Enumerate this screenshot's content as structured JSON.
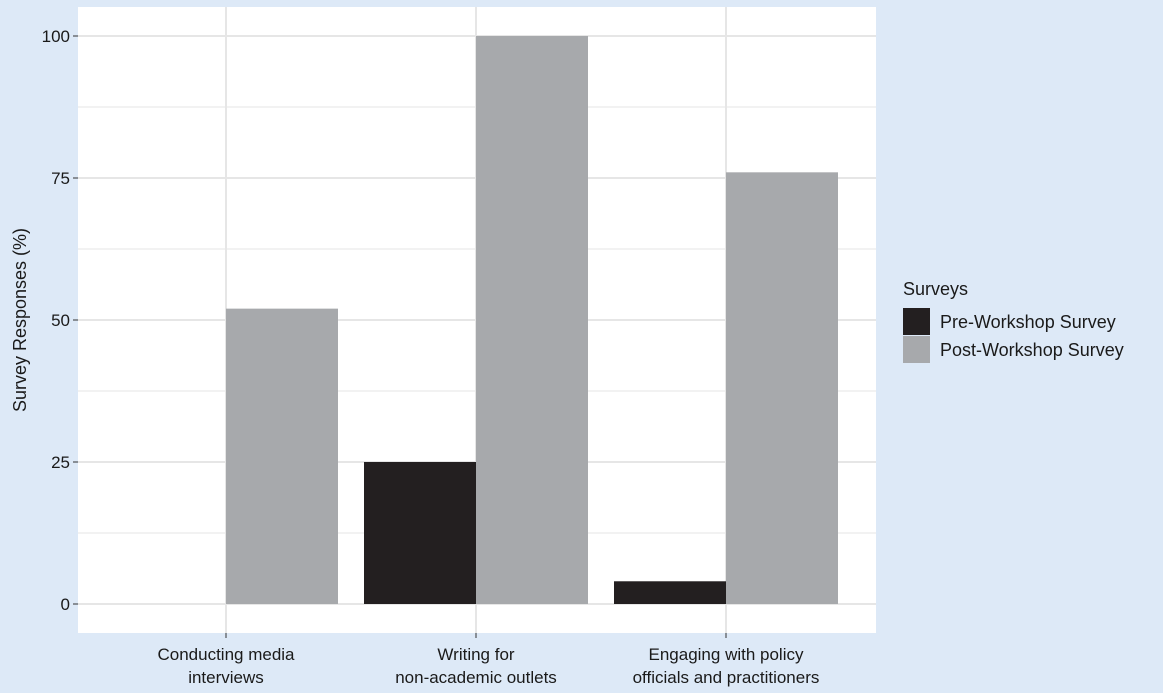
{
  "chart_data": {
    "type": "bar",
    "title": "",
    "xlabel": "",
    "ylabel": "Survey Responses (%)",
    "categories": [
      [
        "Conducting media",
        "interviews"
      ],
      [
        "Writing for",
        "non-academic outlets"
      ],
      [
        "Engaging with policy",
        "officials and practitioners"
      ]
    ],
    "series": [
      {
        "name": "Pre-Workshop Survey",
        "color": "#231f20",
        "values": [
          0,
          25,
          4
        ]
      },
      {
        "name": "Post-Workshop Survey",
        "color": "#a7a9ac",
        "values": [
          52,
          100,
          76
        ]
      }
    ],
    "ylim": [
      0,
      100
    ],
    "yticks": [
      0,
      25,
      50,
      75,
      100
    ],
    "grid": true,
    "legend": {
      "title": "Surveys",
      "placement": "right"
    },
    "colors": {
      "panel": "#ffffff",
      "background": "#dde9f7",
      "grid": "#e6e6e6"
    }
  }
}
